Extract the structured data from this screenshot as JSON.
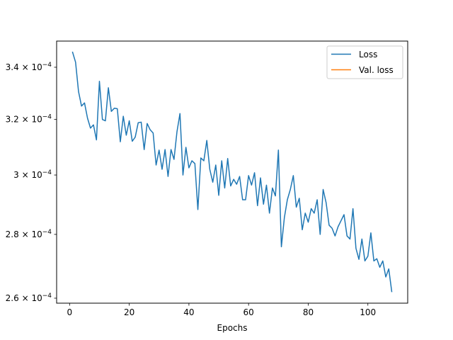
{
  "chart_data": {
    "type": "line",
    "title": "",
    "xlabel": "Epochs",
    "ylabel": "",
    "xlim": [
      -4.35,
      113.35
    ],
    "ylim": [
      0.0002585,
      0.0003505
    ],
    "y_scale": "log",
    "grid": false,
    "legend_position": "top-right",
    "x_ticks": [
      0,
      20,
      40,
      60,
      80,
      100
    ],
    "x_tick_labels": [
      "0",
      "20",
      "40",
      "60",
      "80",
      "100"
    ],
    "y_ticks": [
      0.00026,
      0.00028,
      0.0003,
      0.00032,
      0.00034
    ],
    "y_tick_labels": [
      {
        "mantissa": "2.6",
        "exponent": "-4"
      },
      {
        "mantissa": "2.8",
        "exponent": "-4"
      },
      {
        "mantissa": "3",
        "exponent": "-4"
      },
      {
        "mantissa": "3.2",
        "exponent": "-4"
      },
      {
        "mantissa": "3.4",
        "exponent": "-4"
      }
    ],
    "tick_base": "10",
    "series": [
      {
        "name": "Loss",
        "color": "#1f77b4",
        "x": [
          1,
          2,
          3,
          4,
          5,
          6,
          7,
          8,
          9,
          10,
          11,
          12,
          13,
          14,
          15,
          16,
          17,
          18,
          19,
          20,
          21,
          22,
          23,
          24,
          25,
          26,
          27,
          28,
          29,
          30,
          31,
          32,
          33,
          34,
          35,
          36,
          37,
          38,
          39,
          40,
          41,
          42,
          43,
          44,
          45,
          46,
          47,
          48,
          49,
          50,
          51,
          52,
          53,
          54,
          55,
          56,
          57,
          58,
          59,
          60,
          61,
          62,
          63,
          64,
          65,
          66,
          67,
          68,
          69,
          70,
          71,
          72,
          73,
          74,
          75,
          76,
          77,
          78,
          79,
          80,
          81,
          82,
          83,
          84,
          85,
          86,
          87,
          88,
          89,
          90,
          91,
          92,
          93,
          94,
          95,
          96,
          97,
          98,
          99,
          100,
          101,
          102,
          103,
          104,
          105,
          106,
          107,
          108
        ],
        "values": [
          0.000346,
          0.000342,
          0.0003305,
          0.000325,
          0.0003262,
          0.0003205,
          0.0003168,
          0.000318,
          0.0003125,
          0.0003345,
          0.00032,
          0.0003195,
          0.000332,
          0.000323,
          0.0003242,
          0.000324,
          0.0003118,
          0.0003212,
          0.0003142,
          0.0003195,
          0.000312,
          0.0003135,
          0.0003188,
          0.000319,
          0.000309,
          0.0003185,
          0.0003162,
          0.000315,
          0.0003035,
          0.0003088,
          0.000302,
          0.000309,
          0.0002995,
          0.000309,
          0.0003055,
          0.0003155,
          0.0003222,
          0.0003,
          0.0003098,
          0.0003025,
          0.000305,
          0.000304,
          0.0002882,
          0.000306,
          0.000305,
          0.0003123,
          0.000302,
          0.0002975,
          0.0003035,
          0.000293,
          0.000305,
          0.0002955,
          0.0003058,
          0.0002962,
          0.0002985,
          0.0002968,
          0.0002995,
          0.0002915,
          0.0002915,
          0.0002998,
          0.0002965,
          0.0003008,
          0.0002895,
          0.000299,
          0.00029,
          0.0002965,
          0.000287,
          0.0002955,
          0.0002928,
          0.0003088,
          0.000276,
          0.0002855,
          0.0002915,
          0.000295,
          0.0002998,
          0.000289,
          0.000292,
          0.0002815,
          0.000287,
          0.000284,
          0.0002885,
          0.000287,
          0.0002915,
          0.00028,
          0.000295,
          0.0002905,
          0.000283,
          0.000282,
          0.0002795,
          0.0002825,
          0.0002845,
          0.0002865,
          0.0002795,
          0.0002785,
          0.0002885,
          0.0002755,
          0.000272,
          0.0002785,
          0.0002715,
          0.000273,
          0.0002805,
          0.0002715,
          0.0002722,
          0.0002695,
          0.0002715,
          0.0002665,
          0.000269,
          0.000262
        ]
      },
      {
        "name": "Val. loss",
        "color": "#ff7f0e",
        "x": [],
        "values": []
      }
    ]
  }
}
